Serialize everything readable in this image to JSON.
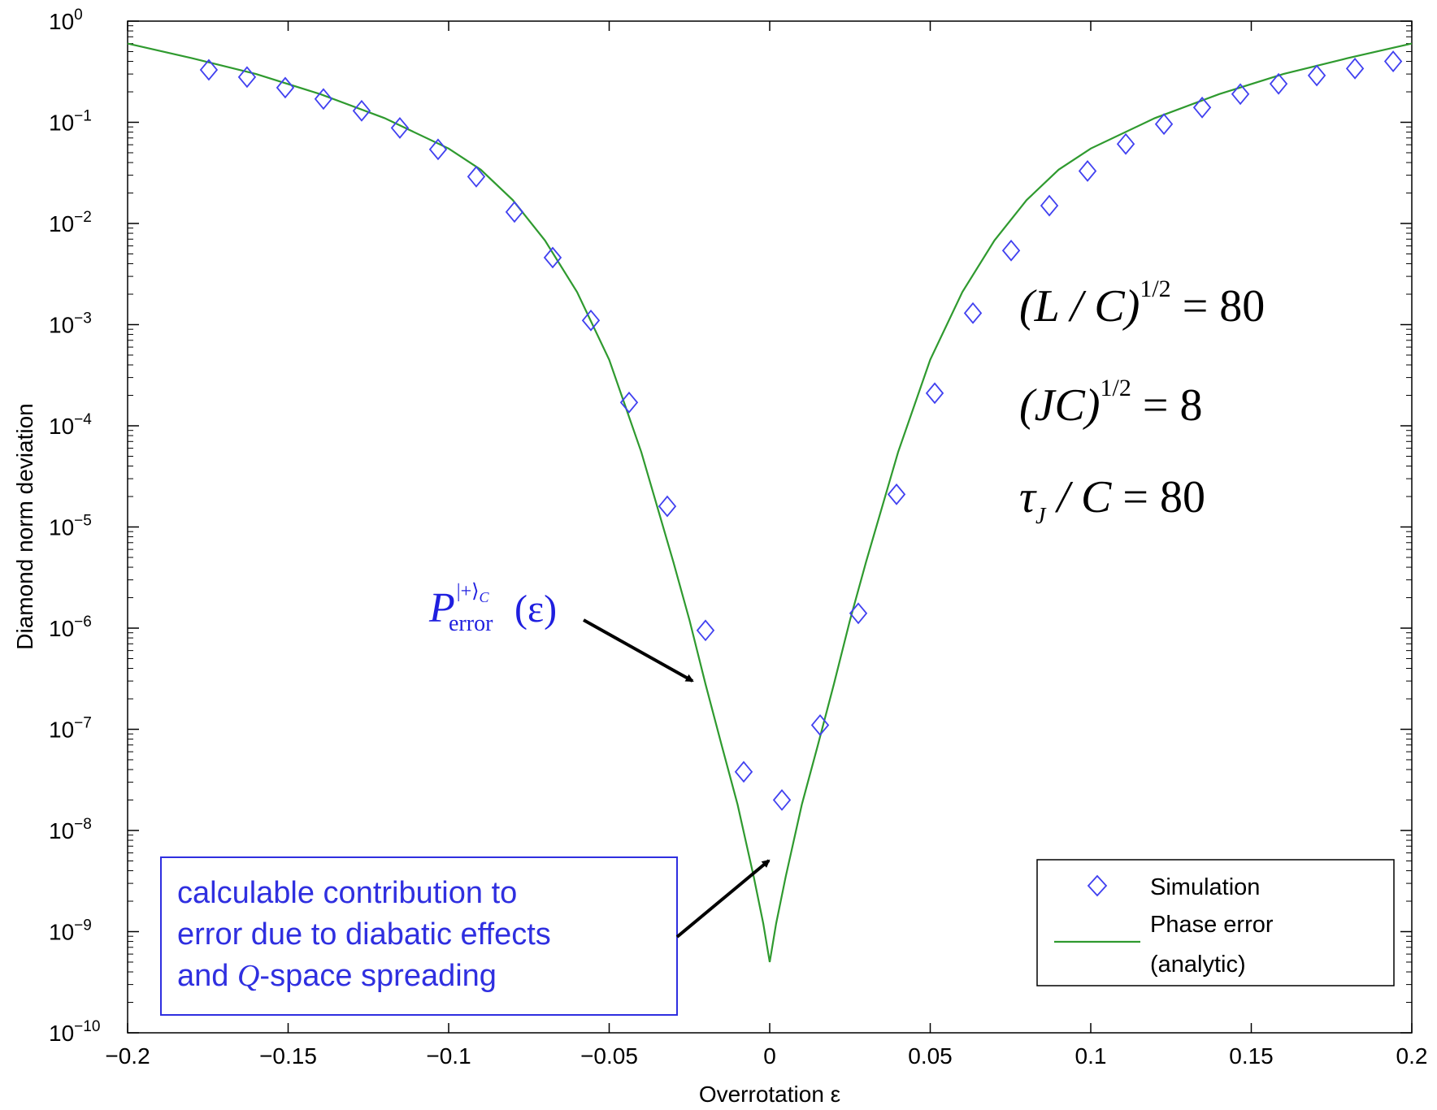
{
  "chart_data": {
    "type": "scatter",
    "xlabel": "Overrotation ε",
    "ylabel": "Diamond norm deviation",
    "xlim": [
      -0.2,
      0.2
    ],
    "ylim": [
      1e-10,
      1
    ],
    "yscale": "log",
    "grid": false,
    "legend_position": "bottom-right",
    "x_tick_labels": [
      "−0.2",
      "−0.15",
      "−0.1",
      "−0.05",
      "0",
      "0.05",
      "0.1",
      "0.15",
      "0.2"
    ],
    "y_tick_labels": [
      {
        "base": "10",
        "exp": "−10"
      },
      {
        "base": "10",
        "exp": "−9"
      },
      {
        "base": "10",
        "exp": "−8"
      },
      {
        "base": "10",
        "exp": "−7"
      },
      {
        "base": "10",
        "exp": "−6"
      },
      {
        "base": "10",
        "exp": "−5"
      },
      {
        "base": "10",
        "exp": "−4"
      },
      {
        "base": "10",
        "exp": "−3"
      },
      {
        "base": "10",
        "exp": "−2"
      },
      {
        "base": "10",
        "exp": "−1"
      },
      {
        "base": "10",
        "exp": "0"
      }
    ],
    "series": [
      {
        "name": "Simulation",
        "type": "scatter",
        "marker": "diamond",
        "color": "#4040f0",
        "points": [
          [
            -0.1747,
            0.33
          ],
          [
            -0.1628,
            0.28
          ],
          [
            -0.1509,
            0.22
          ],
          [
            -0.139,
            0.17
          ],
          [
            -0.1271,
            0.13
          ],
          [
            -0.1152,
            0.088
          ],
          [
            -0.1033,
            0.054
          ],
          [
            -0.0914,
            0.029
          ],
          [
            -0.0795,
            0.013
          ],
          [
            -0.0676,
            0.0046
          ],
          [
            -0.0557,
            0.0011
          ],
          [
            -0.0438,
            0.00017
          ],
          [
            -0.0319,
            1.6e-05
          ],
          [
            -0.02,
            9.5e-07
          ],
          [
            -0.0081,
            3.8e-08
          ],
          [
            0.0038,
            2e-08
          ],
          [
            0.0157,
            1.1e-07
          ],
          [
            0.0276,
            1.4e-06
          ],
          [
            0.0395,
            2.1e-05
          ],
          [
            0.0514,
            0.00021
          ],
          [
            0.0633,
            0.0013
          ],
          [
            0.0752,
            0.0054
          ],
          [
            0.0871,
            0.015
          ],
          [
            0.099,
            0.033
          ],
          [
            0.1109,
            0.061
          ],
          [
            0.1228,
            0.096
          ],
          [
            0.1347,
            0.14
          ],
          [
            0.1466,
            0.19
          ],
          [
            0.1585,
            0.24
          ],
          [
            0.1704,
            0.29
          ],
          [
            0.1823,
            0.34
          ],
          [
            0.1942,
            0.4
          ]
        ]
      },
      {
        "name": "Phase error (analytic)",
        "type": "line",
        "color": "#2f9a2f",
        "points": [
          [
            -0.2,
            0.6
          ],
          [
            -0.18,
            0.43
          ],
          [
            -0.16,
            0.3
          ],
          [
            -0.14,
            0.19
          ],
          [
            -0.12,
            0.11
          ],
          [
            -0.1,
            0.055
          ],
          [
            -0.09,
            0.034
          ],
          [
            -0.08,
            0.017
          ],
          [
            -0.07,
            0.0068
          ],
          [
            -0.06,
            0.0021
          ],
          [
            -0.05,
            0.00045
          ],
          [
            -0.04,
            5.5e-05
          ],
          [
            -0.03,
            4.5e-06
          ],
          [
            -0.025,
            1.2e-06
          ],
          [
            -0.02,
            2.8e-07
          ],
          [
            -0.015,
            7e-08
          ],
          [
            -0.01,
            1.8e-08
          ],
          [
            -0.005,
            3.5e-09
          ],
          [
            -0.002,
            1.2e-09
          ],
          [
            0,
            5e-10
          ],
          [
            0.002,
            1.2e-09
          ],
          [
            0.005,
            3.5e-09
          ],
          [
            0.01,
            1.8e-08
          ],
          [
            0.015,
            7e-08
          ],
          [
            0.02,
            2.8e-07
          ],
          [
            0.025,
            1.2e-06
          ],
          [
            0.03,
            4.5e-06
          ],
          [
            0.04,
            5.5e-05
          ],
          [
            0.05,
            0.00045
          ],
          [
            0.06,
            0.0021
          ],
          [
            0.07,
            0.0068
          ],
          [
            0.08,
            0.017
          ],
          [
            0.09,
            0.034
          ],
          [
            0.1,
            0.055
          ],
          [
            0.12,
            0.11
          ],
          [
            0.14,
            0.19
          ],
          [
            0.16,
            0.3
          ],
          [
            0.18,
            0.43
          ],
          [
            0.2,
            0.6
          ]
        ]
      }
    ],
    "legend": {
      "entries": [
        "Simulation",
        "Phase error",
        "(analytic)"
      ]
    },
    "annotations": {
      "params": {
        "line1": {
          "lhs": "(L / C)",
          "exp": "1/2",
          "rhs": "= 80"
        },
        "line2": {
          "lhs": "(JC)",
          "exp": "1/2",
          "rhs": "= 8"
        },
        "line3": {
          "lhs_sym": "τ",
          "lhs_sub": "J",
          "lhs_rest": " / C",
          "rhs": "= 80"
        }
      },
      "curve_label": {
        "P": "P",
        "superscript": "|+⟩",
        "superscript_sub": "C",
        "subscript": "error",
        "arg": "(ε)"
      },
      "note_box": {
        "line1": "calculable contribution to",
        "line2": "error due to diabatic effects",
        "line3_a": "and ",
        "line3_q": "Q",
        "line3_b": "-space spreading"
      }
    }
  }
}
